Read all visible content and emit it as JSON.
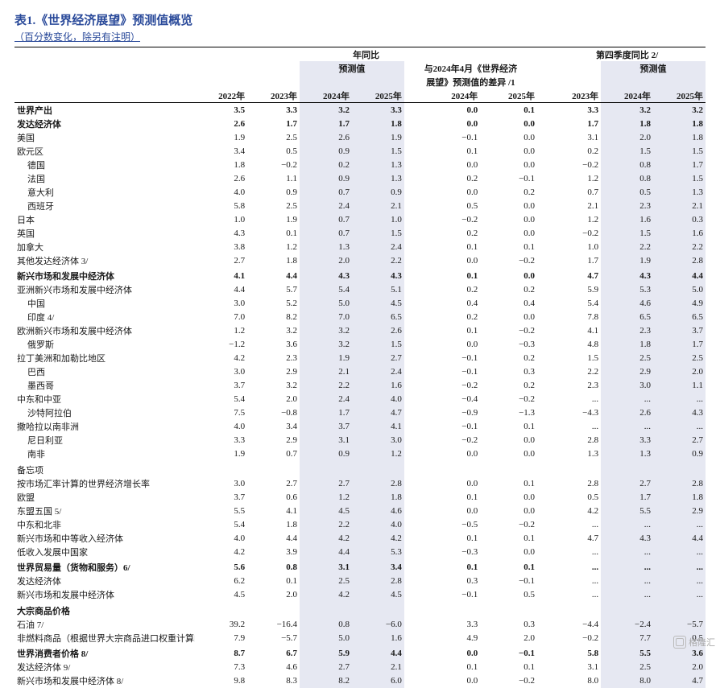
{
  "title_prefix": "表1.",
  "title_body": "《世界经济展望》预测值概览",
  "subtitle": "（百分数变化，除另有注明）",
  "colgroup_yoy": "年同比",
  "colgroup_forecast": "预测值",
  "colgroup_diff_line1": "与2024年4月《世界经济",
  "colgroup_diff_line2": "展望》预测值的差异 /1",
  "colgroup_q4": "第四季度同比 2/",
  "colgroup_q4_forecast": "预测值",
  "col_2022": "2022年",
  "col_2023": "2023年",
  "col_2024": "2024年",
  "col_2025": "2025年",
  "col_q_2023": "2023年",
  "col_q_2024": "2024年",
  "col_q_2025": "2025年",
  "watermark": "格隆汇",
  "rows": [
    {
      "label": "世界产出",
      "bold": true,
      "indent": 0,
      "vals": [
        "3.5",
        "3.3",
        "3.2",
        "3.3",
        "0.0",
        "0.1",
        "3.3",
        "3.2",
        "3.2"
      ]
    },
    {
      "label": "发达经济体",
      "bold": true,
      "indent": 0,
      "vals": [
        "2.6",
        "1.7",
        "1.7",
        "1.8",
        "0.0",
        "0.0",
        "1.7",
        "1.8",
        "1.8"
      ]
    },
    {
      "label": "美国",
      "indent": 0,
      "vals": [
        "1.9",
        "2.5",
        "2.6",
        "1.9",
        "−0.1",
        "0.0",
        "3.1",
        "2.0",
        "1.8"
      ]
    },
    {
      "label": "欧元区",
      "indent": 0,
      "vals": [
        "3.4",
        "0.5",
        "0.9",
        "1.5",
        "0.1",
        "0.0",
        "0.2",
        "1.5",
        "1.5"
      ]
    },
    {
      "label": "德国",
      "indent": 1,
      "vals": [
        "1.8",
        "−0.2",
        "0.2",
        "1.3",
        "0.0",
        "0.0",
        "−0.2",
        "0.8",
        "1.7"
      ]
    },
    {
      "label": "法国",
      "indent": 1,
      "vals": [
        "2.6",
        "1.1",
        "0.9",
        "1.3",
        "0.2",
        "−0.1",
        "1.2",
        "0.8",
        "1.5"
      ]
    },
    {
      "label": "意大利",
      "indent": 1,
      "vals": [
        "4.0",
        "0.9",
        "0.7",
        "0.9",
        "0.0",
        "0.2",
        "0.7",
        "0.5",
        "1.3"
      ]
    },
    {
      "label": "西班牙",
      "indent": 1,
      "vals": [
        "5.8",
        "2.5",
        "2.4",
        "2.1",
        "0.5",
        "0.0",
        "2.1",
        "2.3",
        "2.1"
      ]
    },
    {
      "label": "日本",
      "indent": 0,
      "vals": [
        "1.0",
        "1.9",
        "0.7",
        "1.0",
        "−0.2",
        "0.0",
        "1.2",
        "1.6",
        "0.3"
      ]
    },
    {
      "label": "英国",
      "indent": 0,
      "vals": [
        "4.3",
        "0.1",
        "0.7",
        "1.5",
        "0.2",
        "0.0",
        "−0.2",
        "1.5",
        "1.6"
      ]
    },
    {
      "label": "加拿大",
      "indent": 0,
      "vals": [
        "3.8",
        "1.2",
        "1.3",
        "2.4",
        "0.1",
        "0.1",
        "1.0",
        "2.2",
        "2.2"
      ]
    },
    {
      "label": "其他发达经济体 3/",
      "indent": 0,
      "vals": [
        "2.7",
        "1.8",
        "2.0",
        "2.2",
        "0.0",
        "−0.2",
        "1.7",
        "1.9",
        "2.8"
      ]
    },
    {
      "label": "新兴市场和发展中经济体",
      "bold": true,
      "indent": 0,
      "sec": true,
      "vals": [
        "4.1",
        "4.4",
        "4.3",
        "4.3",
        "0.1",
        "0.0",
        "4.7",
        "4.3",
        "4.4"
      ]
    },
    {
      "label": "亚洲新兴市场和发展中经济体",
      "indent": 0,
      "vals": [
        "4.4",
        "5.7",
        "5.4",
        "5.1",
        "0.2",
        "0.2",
        "5.9",
        "5.3",
        "5.0"
      ]
    },
    {
      "label": "中国",
      "indent": 1,
      "vals": [
        "3.0",
        "5.2",
        "5.0",
        "4.5",
        "0.4",
        "0.4",
        "5.4",
        "4.6",
        "4.9"
      ]
    },
    {
      "label": "印度 4/",
      "indent": 1,
      "vals": [
        "7.0",
        "8.2",
        "7.0",
        "6.5",
        "0.2",
        "0.0",
        "7.8",
        "6.5",
        "6.5"
      ]
    },
    {
      "label": "欧洲新兴市场和发展中经济体",
      "indent": 0,
      "vals": [
        "1.2",
        "3.2",
        "3.2",
        "2.6",
        "0.1",
        "−0.2",
        "4.1",
        "2.3",
        "3.7"
      ]
    },
    {
      "label": "俄罗斯",
      "indent": 1,
      "vals": [
        "−1.2",
        "3.6",
        "3.2",
        "1.5",
        "0.0",
        "−0.3",
        "4.8",
        "1.8",
        "1.7"
      ]
    },
    {
      "label": "拉丁美洲和加勒比地区",
      "indent": 0,
      "vals": [
        "4.2",
        "2.3",
        "1.9",
        "2.7",
        "−0.1",
        "0.2",
        "1.5",
        "2.5",
        "2.5"
      ]
    },
    {
      "label": "巴西",
      "indent": 1,
      "vals": [
        "3.0",
        "2.9",
        "2.1",
        "2.4",
        "−0.1",
        "0.3",
        "2.2",
        "2.9",
        "2.0"
      ]
    },
    {
      "label": "墨西哥",
      "indent": 1,
      "vals": [
        "3.7",
        "3.2",
        "2.2",
        "1.6",
        "−0.2",
        "0.2",
        "2.3",
        "3.0",
        "1.1"
      ]
    },
    {
      "label": "中东和中亚",
      "indent": 0,
      "vals": [
        "5.4",
        "2.0",
        "2.4",
        "4.0",
        "−0.4",
        "−0.2",
        "...",
        "...",
        "..."
      ]
    },
    {
      "label": "沙特阿拉伯",
      "indent": 1,
      "vals": [
        "7.5",
        "−0.8",
        "1.7",
        "4.7",
        "−0.9",
        "−1.3",
        "−4.3",
        "2.6",
        "4.3"
      ]
    },
    {
      "label": "撒哈拉以南非洲",
      "indent": 0,
      "vals": [
        "4.0",
        "3.4",
        "3.7",
        "4.1",
        "−0.1",
        "0.1",
        "...",
        "...",
        "..."
      ]
    },
    {
      "label": "尼日利亚",
      "indent": 1,
      "vals": [
        "3.3",
        "2.9",
        "3.1",
        "3.0",
        "−0.2",
        "0.0",
        "2.8",
        "3.3",
        "2.7"
      ]
    },
    {
      "label": "南非",
      "indent": 1,
      "vals": [
        "1.9",
        "0.7",
        "0.9",
        "1.2",
        "0.0",
        "0.0",
        "1.3",
        "1.3",
        "0.9"
      ]
    },
    {
      "label": "备忘项",
      "indent": 0,
      "sec": true,
      "vals": [
        "",
        "",
        "",
        "",
        "",
        "",
        "",
        "",
        ""
      ]
    },
    {
      "label": "按市场汇率计算的世界经济增长率",
      "indent": 0,
      "vals": [
        "3.0",
        "2.7",
        "2.7",
        "2.8",
        "0.0",
        "0.1",
        "2.8",
        "2.7",
        "2.8"
      ]
    },
    {
      "label": "欧盟",
      "indent": 0,
      "vals": [
        "3.7",
        "0.6",
        "1.2",
        "1.8",
        "0.1",
        "0.0",
        "0.5",
        "1.7",
        "1.8"
      ]
    },
    {
      "label": "东盟五国 5/",
      "indent": 0,
      "vals": [
        "5.5",
        "4.1",
        "4.5",
        "4.6",
        "0.0",
        "0.0",
        "4.2",
        "5.5",
        "2.9"
      ]
    },
    {
      "label": "中东和北非",
      "indent": 0,
      "vals": [
        "5.4",
        "1.8",
        "2.2",
        "4.0",
        "−0.5",
        "−0.2",
        "...",
        "...",
        "..."
      ]
    },
    {
      "label": "新兴市场和中等收入经济体",
      "indent": 0,
      "vals": [
        "4.0",
        "4.4",
        "4.2",
        "4.2",
        "0.1",
        "0.1",
        "4.7",
        "4.3",
        "4.4"
      ]
    },
    {
      "label": "低收入发展中国家",
      "indent": 0,
      "vals": [
        "4.2",
        "3.9",
        "4.4",
        "5.3",
        "−0.3",
        "0.0",
        "...",
        "...",
        "..."
      ]
    },
    {
      "label": "世界贸易量（货物和服务）6/",
      "bold": true,
      "indent": 0,
      "sec": true,
      "vals": [
        "5.6",
        "0.8",
        "3.1",
        "3.4",
        "0.1",
        "0.1",
        "...",
        "...",
        "..."
      ]
    },
    {
      "label": "发达经济体",
      "indent": 0,
      "vals": [
        "6.2",
        "0.1",
        "2.5",
        "2.8",
        "0.3",
        "−0.1",
        "...",
        "...",
        "..."
      ]
    },
    {
      "label": "新兴市场和发展中经济体",
      "indent": 0,
      "vals": [
        "4.5",
        "2.0",
        "4.2",
        "4.5",
        "−0.1",
        "0.5",
        "...",
        "...",
        "..."
      ]
    },
    {
      "label": "大宗商品价格",
      "bold": true,
      "indent": 0,
      "sec": true,
      "vals": [
        "",
        "",
        "",
        "",
        "",
        "",
        "",
        "",
        ""
      ]
    },
    {
      "label": "石油 7/",
      "indent": 0,
      "vals": [
        "39.2",
        "−16.4",
        "0.8",
        "−6.0",
        "3.3",
        "0.3",
        "−4.4",
        "−2.4",
        "−5.7"
      ]
    },
    {
      "label": "非燃料商品（根据世界大宗商品进口权重计算的",
      "indent": 0,
      "vals": [
        "7.9",
        "−5.7",
        "5.0",
        "1.6",
        "4.9",
        "2.0",
        "−0.2",
        "7.7",
        "0.5"
      ]
    },
    {
      "label": "世界消费者价格 8/",
      "bold": true,
      "indent": 0,
      "sec": true,
      "vals": [
        "8.7",
        "6.7",
        "5.9",
        "4.4",
        "0.0",
        "−0.1",
        "5.8",
        "5.5",
        "3.6"
      ]
    },
    {
      "label": "发达经济体 9/",
      "indent": 0,
      "vals": [
        "7.3",
        "4.6",
        "2.7",
        "2.1",
        "0.1",
        "0.1",
        "3.1",
        "2.5",
        "2.0"
      ]
    },
    {
      "label": "新兴市场和发展中经济体 8/",
      "indent": 0,
      "vals": [
        "9.8",
        "8.3",
        "8.2",
        "6.0",
        "0.0",
        "−0.2",
        "8.0",
        "8.0",
        "4.7"
      ]
    }
  ]
}
